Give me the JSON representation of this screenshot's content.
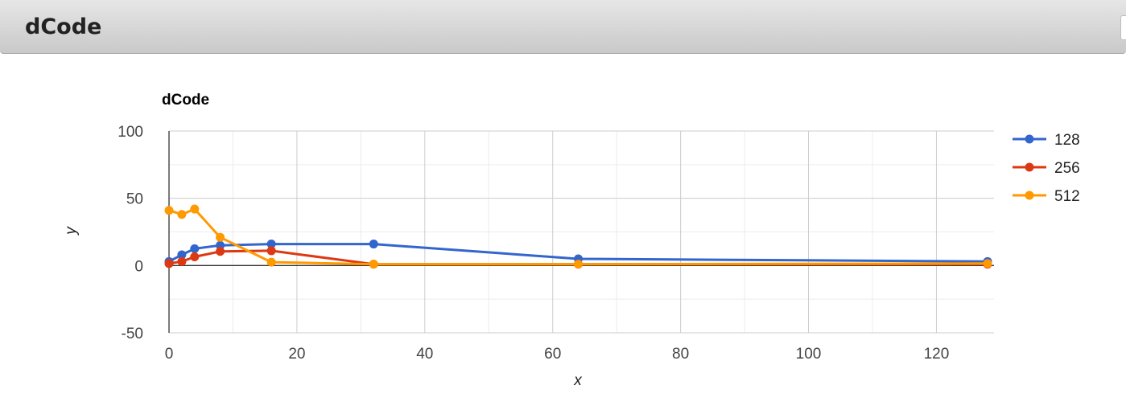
{
  "header": {
    "title": "dCode"
  },
  "chart_data": {
    "type": "line",
    "title": "dCode",
    "xlabel": "x",
    "ylabel": "y",
    "xlim": [
      0,
      128
    ],
    "ylim": [
      -50,
      100
    ],
    "x_ticks": [
      0,
      20,
      40,
      60,
      80,
      100,
      120
    ],
    "y_ticks": [
      100,
      50,
      0,
      -50
    ],
    "x_ticks_labels": [
      "0",
      "20",
      "40",
      "60",
      "80",
      "100",
      "120"
    ],
    "y_ticks_labels": [
      "100",
      "50",
      "0",
      "-50"
    ],
    "grid": true,
    "legend_position": "right",
    "series": [
      {
        "name": "128",
        "color": "#3366cc",
        "points": [
          [
            0,
            3
          ],
          [
            2,
            8
          ],
          [
            4,
            12.5
          ],
          [
            8,
            15
          ],
          [
            16,
            16
          ],
          [
            32,
            16
          ],
          [
            64,
            5
          ],
          [
            128,
            3
          ]
        ]
      },
      {
        "name": "256",
        "color": "#dc3912",
        "points": [
          [
            0,
            1.5
          ],
          [
            2,
            3
          ],
          [
            4,
            6.5
          ],
          [
            8,
            10.5
          ],
          [
            16,
            11
          ],
          [
            32,
            1
          ],
          [
            64,
            1
          ],
          [
            128,
            1
          ]
        ]
      },
      {
        "name": "512",
        "color": "#ff9900",
        "points": [
          [
            0,
            41
          ],
          [
            2,
            38
          ],
          [
            4,
            42
          ],
          [
            8,
            21
          ],
          [
            16,
            2.5
          ],
          [
            32,
            1
          ],
          [
            64,
            1
          ],
          [
            128,
            1.5
          ]
        ]
      }
    ]
  }
}
